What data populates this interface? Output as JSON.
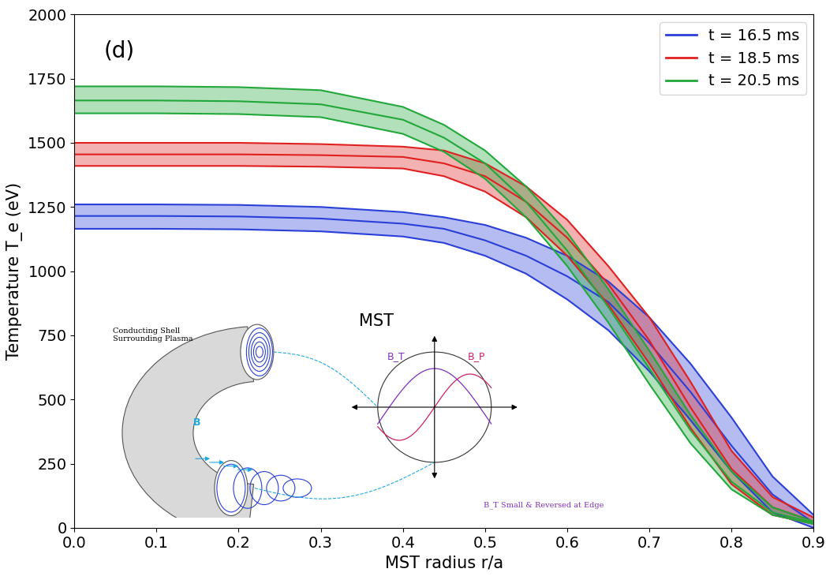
{
  "chart_data": {
    "type": "line",
    "xlabel": "MST radius r/a",
    "ylabel": "Temperature T_e (eV)",
    "annotation": "(d)",
    "x": [
      0.0,
      0.1,
      0.2,
      0.3,
      0.4,
      0.45,
      0.5,
      0.55,
      0.6,
      0.65,
      0.7,
      0.75,
      0.8,
      0.85,
      0.9
    ],
    "series": [
      {
        "name": "t = 16.5 ms",
        "color": "#2a3fd8",
        "values": [
          1215,
          1215,
          1213,
          1205,
          1185,
          1165,
          1120,
          1060,
          980,
          880,
          720,
          530,
          320,
          130,
          20
        ],
        "lower": [
          1165,
          1165,
          1163,
          1155,
          1135,
          1110,
          1060,
          990,
          890,
          770,
          610,
          420,
          220,
          60,
          0
        ],
        "upper": [
          1260,
          1260,
          1258,
          1250,
          1230,
          1210,
          1180,
          1130,
          1060,
          960,
          820,
          640,
          430,
          200,
          50
        ]
      },
      {
        "name": "t = 18.5 ms",
        "color": "#e02020",
        "values": [
          1455,
          1455,
          1455,
          1452,
          1445,
          1420,
          1370,
          1270,
          1130,
          950,
          730,
          470,
          230,
          80,
          25
        ],
        "lower": [
          1410,
          1410,
          1410,
          1407,
          1400,
          1370,
          1310,
          1210,
          1060,
          870,
          640,
          390,
          170,
          50,
          15
        ],
        "upper": [
          1500,
          1500,
          1500,
          1495,
          1485,
          1470,
          1420,
          1330,
          1200,
          1020,
          820,
          570,
          300,
          120,
          40
        ]
      },
      {
        "name": "t = 20.5 ms",
        "color": "#22a83a",
        "values": [
          1665,
          1665,
          1662,
          1650,
          1590,
          1520,
          1420,
          1270,
          1080,
          860,
          620,
          380,
          180,
          60,
          20
        ],
        "lower": [
          1615,
          1615,
          1612,
          1600,
          1535,
          1465,
          1360,
          1210,
          1020,
          800,
          560,
          330,
          150,
          50,
          15
        ],
        "upper": [
          1720,
          1720,
          1717,
          1705,
          1640,
          1570,
          1470,
          1330,
          1150,
          930,
          690,
          440,
          220,
          80,
          25
        ]
      }
    ],
    "xlim": [
      0.0,
      0.9
    ],
    "xticks": [
      0.0,
      0.1,
      0.2,
      0.3,
      0.4,
      0.5,
      0.6,
      0.7,
      0.8,
      0.9
    ],
    "ylim": [
      0,
      2000
    ],
    "yticks": [
      0,
      250,
      500,
      750,
      1000,
      1250,
      1500,
      1750,
      2000
    ],
    "legend": "upper right",
    "grid": false,
    "inset": {
      "title": "MST",
      "shell_label": "Conducting Shell\nSurrounding Plasma",
      "field_label": "B",
      "toroidal_label": "B_T",
      "poloidal_label": "B_P",
      "edge_note": "B_T Small & Reversed at Edge"
    }
  }
}
